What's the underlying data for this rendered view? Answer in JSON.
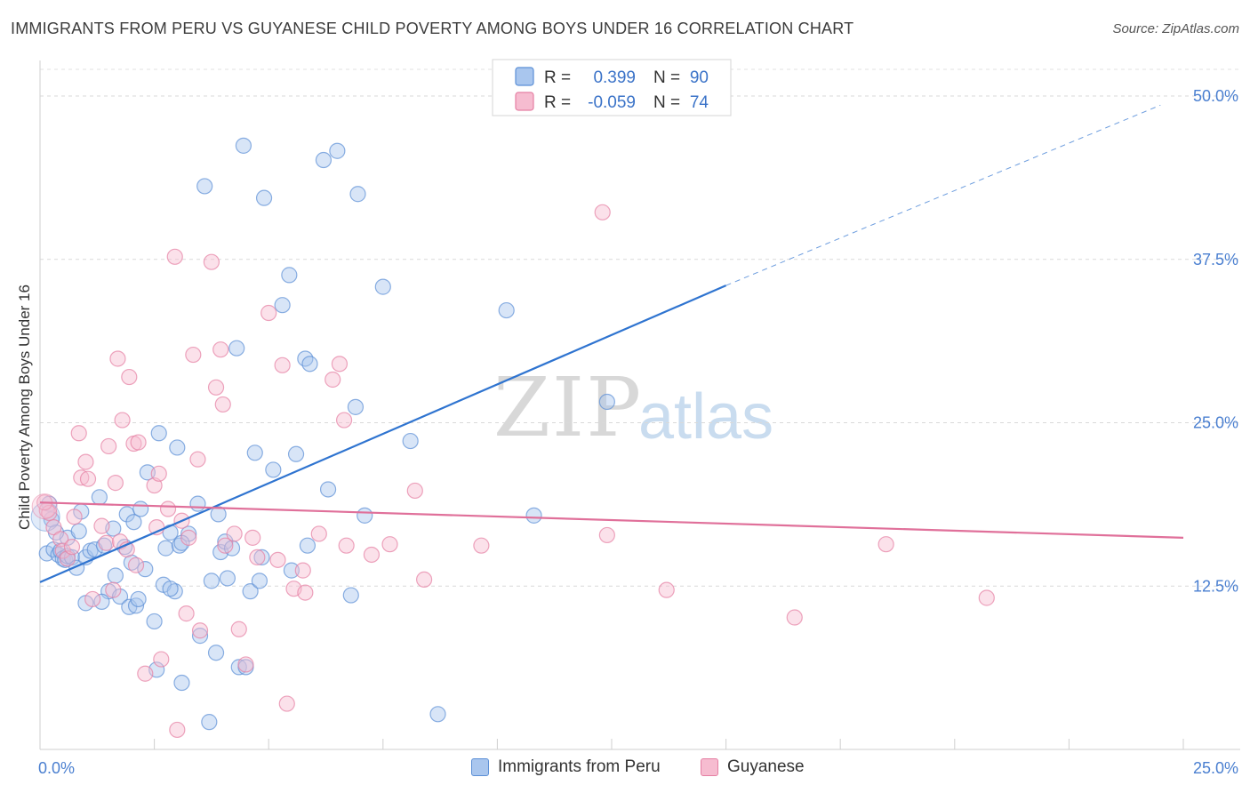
{
  "title": "IMMIGRANTS FROM PERU VS GUYANESE CHILD POVERTY AMONG BOYS UNDER 16 CORRELATION CHART",
  "source": "Source: ZipAtlas.com",
  "watermark": {
    "zip": "ZIP",
    "atlas": "atlas"
  },
  "colors": {
    "blue": "#5b8fd6",
    "blue_fill": "#a9c6ee",
    "blue_line": "#2f74d0",
    "pink": "#e57fa3",
    "pink_fill": "#f6bcd0",
    "pink_line": "#e0709a",
    "tick": "#4a7fd0"
  },
  "legend": {
    "r_label": "R =",
    "n_label": "N =",
    "rows": [
      {
        "series": "Immigrants from Peru",
        "r": "0.399",
        "n": "90"
      },
      {
        "series": "Guyanese",
        "r": "-0.059",
        "n": "74"
      }
    ]
  },
  "chart_data": {
    "type": "scatter",
    "title": "IMMIGRANTS FROM PERU VS GUYANESE CHILD POVERTY AMONG BOYS UNDER 16 CORRELATION CHART",
    "xlabel": "",
    "ylabel": "Child Poverty Among Boys Under 16",
    "xlim": [
      0,
      25
    ],
    "ylim": [
      0,
      50
    ],
    "x_tick_labels": [
      "0.0%",
      "25.0%"
    ],
    "y_ticks": [
      12.5,
      25.0,
      37.5,
      50.0
    ],
    "y_tick_labels": [
      "12.5%",
      "25.0%",
      "37.5%",
      "50.0%"
    ],
    "series": [
      {
        "name": "Immigrants from Peru",
        "color": "#5b8fd6",
        "trend": {
          "x0": 0,
          "y0": 12.8,
          "x1": 15,
          "y1": 35.5,
          "dashed_to_x": 24.5,
          "dashed_to_y": 49.3
        },
        "points": [
          [
            0.15,
            15.0
          ],
          [
            0.3,
            15.3
          ],
          [
            0.4,
            14.9
          ],
          [
            0.45,
            15.2
          ],
          [
            0.5,
            14.6
          ],
          [
            0.55,
            14.5
          ],
          [
            0.6,
            16.2
          ],
          [
            0.6,
            14.8
          ],
          [
            0.7,
            14.7
          ],
          [
            0.8,
            13.9
          ],
          [
            0.85,
            16.7
          ],
          [
            0.9,
            18.2
          ],
          [
            1.0,
            14.7
          ],
          [
            1.1,
            15.2
          ],
          [
            1.2,
            15.3
          ],
          [
            1.3,
            19.3
          ],
          [
            1.4,
            15.6
          ],
          [
            1.5,
            12.1
          ],
          [
            1.6,
            16.9
          ],
          [
            1.65,
            13.3
          ],
          [
            1.75,
            11.7
          ],
          [
            1.85,
            15.5
          ],
          [
            1.9,
            18.0
          ],
          [
            1.95,
            10.9
          ],
          [
            2.0,
            14.3
          ],
          [
            2.05,
            17.4
          ],
          [
            2.1,
            11.0
          ],
          [
            2.2,
            18.4
          ],
          [
            2.3,
            13.8
          ],
          [
            2.35,
            21.2
          ],
          [
            2.5,
            9.8
          ],
          [
            2.55,
            6.1
          ],
          [
            2.6,
            24.2
          ],
          [
            2.7,
            12.6
          ],
          [
            2.75,
            15.4
          ],
          [
            2.85,
            16.6
          ],
          [
            2.95,
            12.1
          ],
          [
            3.0,
            23.1
          ],
          [
            3.05,
            15.6
          ],
          [
            3.1,
            5.1
          ],
          [
            3.25,
            16.5
          ],
          [
            3.45,
            18.8
          ],
          [
            3.5,
            8.7
          ],
          [
            3.6,
            43.1
          ],
          [
            3.7,
            2.1
          ],
          [
            3.75,
            12.9
          ],
          [
            3.85,
            7.4
          ],
          [
            3.95,
            15.1
          ],
          [
            4.05,
            15.9
          ],
          [
            4.1,
            13.1
          ],
          [
            4.2,
            15.4
          ],
          [
            4.3,
            30.7
          ],
          [
            4.35,
            6.3
          ],
          [
            4.45,
            46.2
          ],
          [
            4.5,
            6.3
          ],
          [
            4.6,
            12.1
          ],
          [
            4.7,
            22.7
          ],
          [
            4.8,
            12.9
          ],
          [
            4.85,
            14.7
          ],
          [
            4.9,
            42.2
          ],
          [
            5.1,
            21.4
          ],
          [
            5.3,
            34.0
          ],
          [
            5.45,
            36.3
          ],
          [
            5.5,
            13.7
          ],
          [
            5.6,
            22.6
          ],
          [
            5.8,
            29.9
          ],
          [
            5.85,
            15.6
          ],
          [
            5.9,
            29.5
          ],
          [
            6.2,
            45.1
          ],
          [
            6.3,
            19.9
          ],
          [
            6.5,
            45.8
          ],
          [
            6.8,
            11.8
          ],
          [
            6.9,
            26.2
          ],
          [
            6.95,
            42.5
          ],
          [
            7.1,
            17.9
          ],
          [
            7.5,
            35.4
          ],
          [
            8.1,
            23.6
          ],
          [
            8.7,
            2.7
          ],
          [
            10.2,
            33.6
          ],
          [
            10.8,
            17.9
          ],
          [
            12.4,
            26.6
          ],
          [
            0.2,
            18.8
          ],
          [
            0.25,
            17.6
          ],
          [
            0.35,
            16.6
          ],
          [
            1.0,
            11.2
          ],
          [
            1.35,
            11.3
          ],
          [
            2.85,
            12.3
          ],
          [
            3.1,
            15.8
          ],
          [
            2.15,
            11.5
          ],
          [
            3.9,
            18.0
          ]
        ]
      },
      {
        "name": "Guyanese",
        "color": "#e57fa3",
        "trend": {
          "x0": 0,
          "y0": 18.9,
          "x1": 25,
          "y1": 16.2
        },
        "points": [
          [
            0.15,
            18.3
          ],
          [
            0.2,
            18.1
          ],
          [
            0.3,
            17.0
          ],
          [
            0.45,
            16.1
          ],
          [
            0.5,
            15.2
          ],
          [
            0.6,
            14.6
          ],
          [
            0.7,
            15.5
          ],
          [
            0.75,
            17.8
          ],
          [
            0.85,
            24.2
          ],
          [
            0.9,
            20.8
          ],
          [
            1.0,
            22.0
          ],
          [
            1.05,
            20.7
          ],
          [
            1.15,
            11.5
          ],
          [
            1.35,
            17.1
          ],
          [
            1.45,
            15.8
          ],
          [
            1.5,
            23.2
          ],
          [
            1.6,
            12.2
          ],
          [
            1.65,
            20.4
          ],
          [
            1.75,
            15.9
          ],
          [
            1.7,
            29.9
          ],
          [
            1.8,
            25.2
          ],
          [
            1.9,
            15.3
          ],
          [
            1.95,
            28.5
          ],
          [
            2.05,
            23.4
          ],
          [
            2.1,
            14.1
          ],
          [
            2.15,
            23.5
          ],
          [
            2.3,
            5.8
          ],
          [
            2.5,
            20.2
          ],
          [
            2.55,
            17.0
          ],
          [
            2.6,
            21.1
          ],
          [
            2.65,
            6.9
          ],
          [
            2.8,
            18.4
          ],
          [
            2.95,
            37.7
          ],
          [
            3.0,
            1.5
          ],
          [
            3.1,
            17.5
          ],
          [
            3.2,
            10.4
          ],
          [
            3.25,
            16.2
          ],
          [
            3.35,
            30.2
          ],
          [
            3.45,
            22.2
          ],
          [
            3.5,
            9.1
          ],
          [
            3.75,
            37.3
          ],
          [
            3.85,
            27.7
          ],
          [
            3.95,
            30.6
          ],
          [
            4.0,
            26.4
          ],
          [
            4.05,
            15.6
          ],
          [
            4.25,
            16.5
          ],
          [
            4.35,
            9.2
          ],
          [
            4.5,
            6.5
          ],
          [
            4.65,
            16.2
          ],
          [
            4.75,
            14.7
          ],
          [
            5.0,
            33.4
          ],
          [
            5.2,
            14.5
          ],
          [
            5.3,
            29.4
          ],
          [
            5.4,
            3.5
          ],
          [
            5.55,
            12.3
          ],
          [
            5.75,
            13.7
          ],
          [
            5.8,
            12.0
          ],
          [
            6.1,
            16.5
          ],
          [
            6.4,
            28.3
          ],
          [
            6.55,
            29.5
          ],
          [
            6.65,
            25.2
          ],
          [
            6.7,
            15.6
          ],
          [
            7.25,
            14.9
          ],
          [
            7.65,
            15.7
          ],
          [
            8.2,
            19.8
          ],
          [
            8.4,
            13.0
          ],
          [
            9.65,
            15.6
          ],
          [
            12.3,
            41.1
          ],
          [
            12.4,
            16.4
          ],
          [
            13.7,
            12.2
          ],
          [
            16.5,
            10.1
          ],
          [
            18.5,
            15.7
          ],
          [
            20.7,
            11.6
          ],
          [
            0.1,
            18.9
          ]
        ]
      }
    ]
  }
}
